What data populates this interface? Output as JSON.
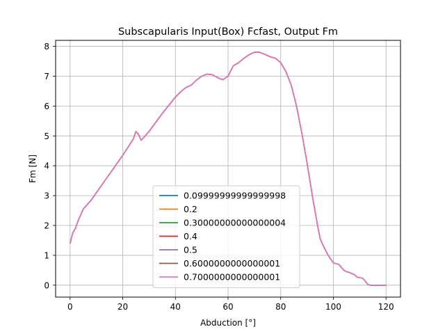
{
  "chart_data": {
    "type": "line",
    "title": "Subscapularis Input(Box) Fcfast, Output Fm",
    "xlabel": "Abduction [°]",
    "ylabel": "Fm [N]",
    "xlim": [
      -5.5,
      125.5
    ],
    "ylim": [
      -0.4,
      8.2
    ],
    "xticks": [
      0,
      20,
      40,
      60,
      80,
      100,
      120
    ],
    "yticks": [
      0,
      1,
      2,
      3,
      4,
      5,
      6,
      7,
      8
    ],
    "grid": true,
    "legend_position": "lower-center",
    "x": [
      0,
      1,
      2,
      3,
      4,
      5,
      6,
      8,
      10,
      12,
      14,
      16,
      18,
      20,
      22,
      24,
      25,
      26,
      27,
      30,
      35,
      40,
      42,
      44,
      46,
      48,
      50,
      52,
      54,
      56,
      58,
      60,
      62,
      64,
      66,
      68,
      70,
      72,
      74,
      76,
      78,
      80,
      82,
      84,
      86,
      88,
      90,
      92,
      94,
      95,
      96,
      98,
      100,
      101,
      102,
      104,
      105,
      106,
      108,
      109,
      110,
      111,
      112,
      113,
      114,
      116,
      118,
      120
    ],
    "series": [
      {
        "name": "0.09999999999999998",
        "color": "#1f77b4"
      },
      {
        "name": "0.2",
        "color": "#ff7f0e"
      },
      {
        "name": "0.30000000000000004",
        "color": "#2ca02c"
      },
      {
        "name": "0.4",
        "color": "#d62728"
      },
      {
        "name": "0.5",
        "color": "#9467bd"
      },
      {
        "name": "0.6000000000000001",
        "color": "#8c564b"
      },
      {
        "name": "0.7000000000000001",
        "color": "#e377c2"
      }
    ],
    "values": [
      1.4,
      1.75,
      1.9,
      2.15,
      2.35,
      2.55,
      2.65,
      2.85,
      3.1,
      3.35,
      3.6,
      3.85,
      4.1,
      4.35,
      4.62,
      4.9,
      5.15,
      5.05,
      4.85,
      5.15,
      5.75,
      6.3,
      6.48,
      6.62,
      6.7,
      6.87,
      7.0,
      7.07,
      7.05,
      6.95,
      6.88,
      7.0,
      7.35,
      7.45,
      7.6,
      7.72,
      7.8,
      7.8,
      7.73,
      7.65,
      7.6,
      7.45,
      7.15,
      6.7,
      6.0,
      5.1,
      4.1,
      3.0,
      2.0,
      1.55,
      1.35,
      1.0,
      0.75,
      0.72,
      0.7,
      0.5,
      0.45,
      0.43,
      0.35,
      0.27,
      0.25,
      0.24,
      0.15,
      0.03,
      0.0,
      0.0,
      0.0,
      0.0
    ]
  }
}
